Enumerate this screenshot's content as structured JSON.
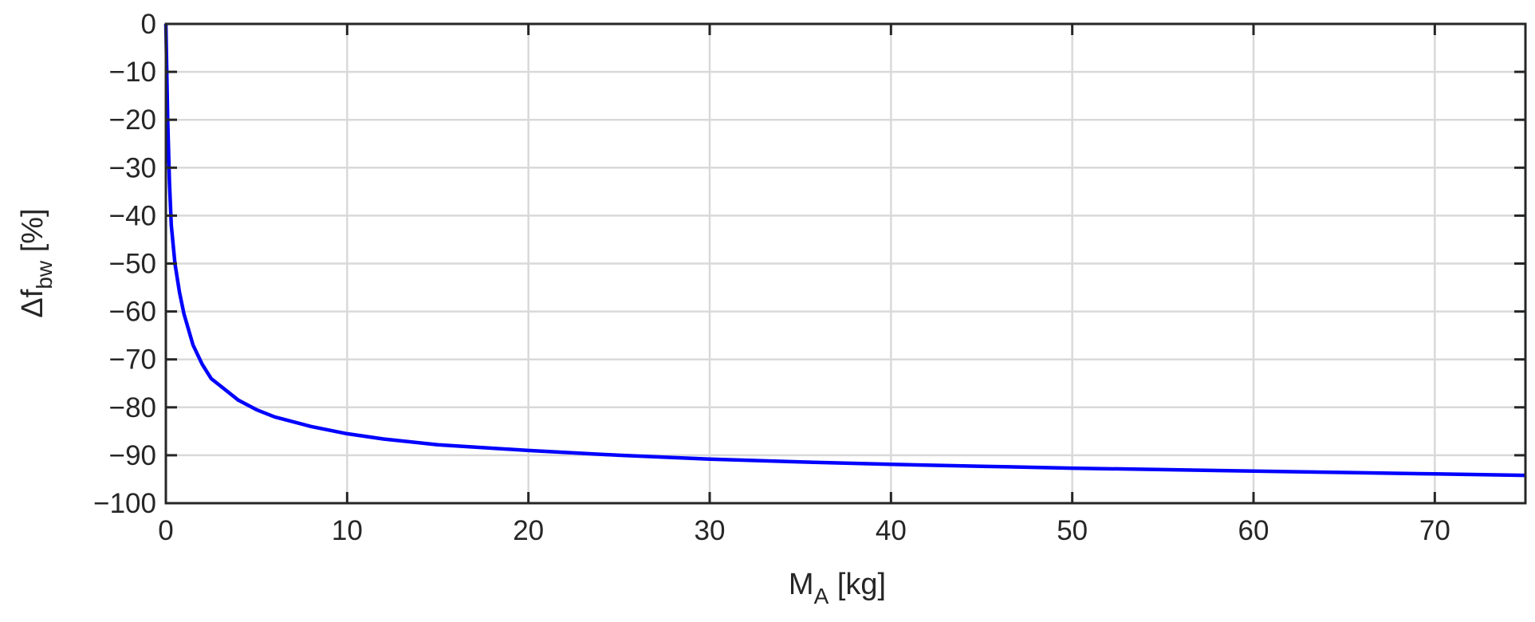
{
  "chart_data": {
    "type": "line",
    "title": "",
    "xlabel": {
      "main": "M",
      "sub": "A",
      "suffix": " [kg]"
    },
    "ylabel": {
      "main": "Δf",
      "sub": "bw",
      "suffix": " [%]"
    },
    "xlim": [
      0,
      75
    ],
    "ylim": [
      -100,
      0
    ],
    "x_ticks": [
      0,
      10,
      20,
      30,
      40,
      50,
      60,
      70
    ],
    "y_ticks": [
      0,
      -10,
      -20,
      -30,
      -40,
      -50,
      -60,
      -70,
      -80,
      -90,
      -100
    ],
    "x_tick_labels": [
      "0",
      "10",
      "20",
      "30",
      "40",
      "50",
      "60",
      "70"
    ],
    "y_tick_labels": [
      "0",
      "−10",
      "−20",
      "−30",
      "−40",
      "−50",
      "−60",
      "−70",
      "−80",
      "−90",
      "−100"
    ],
    "grid": true,
    "legend": "none",
    "series": [
      {
        "color": "#0000ff",
        "x": [
          0,
          0.1,
          0.2,
          0.3,
          0.5,
          0.75,
          1,
          1.5,
          2,
          2.5,
          3,
          4,
          5,
          6,
          8,
          10,
          12,
          15,
          20,
          25,
          30,
          35,
          40,
          45,
          50,
          55,
          60,
          65,
          70,
          75
        ],
        "y": [
          0,
          -20,
          -33,
          -42,
          -50,
          -56,
          -60.5,
          -67,
          -71,
          -74,
          -75.5,
          -78.5,
          -80.5,
          -82,
          -84,
          -85.5,
          -86.6,
          -87.8,
          -89,
          -90,
          -90.8,
          -91.4,
          -91.9,
          -92.3,
          -92.7,
          -93,
          -93.3,
          -93.6,
          -93.9,
          -94.2
        ]
      }
    ],
    "colors": {
      "grid": "#d9d9d9",
      "axes": "#262626",
      "line": "#0000ff"
    }
  }
}
